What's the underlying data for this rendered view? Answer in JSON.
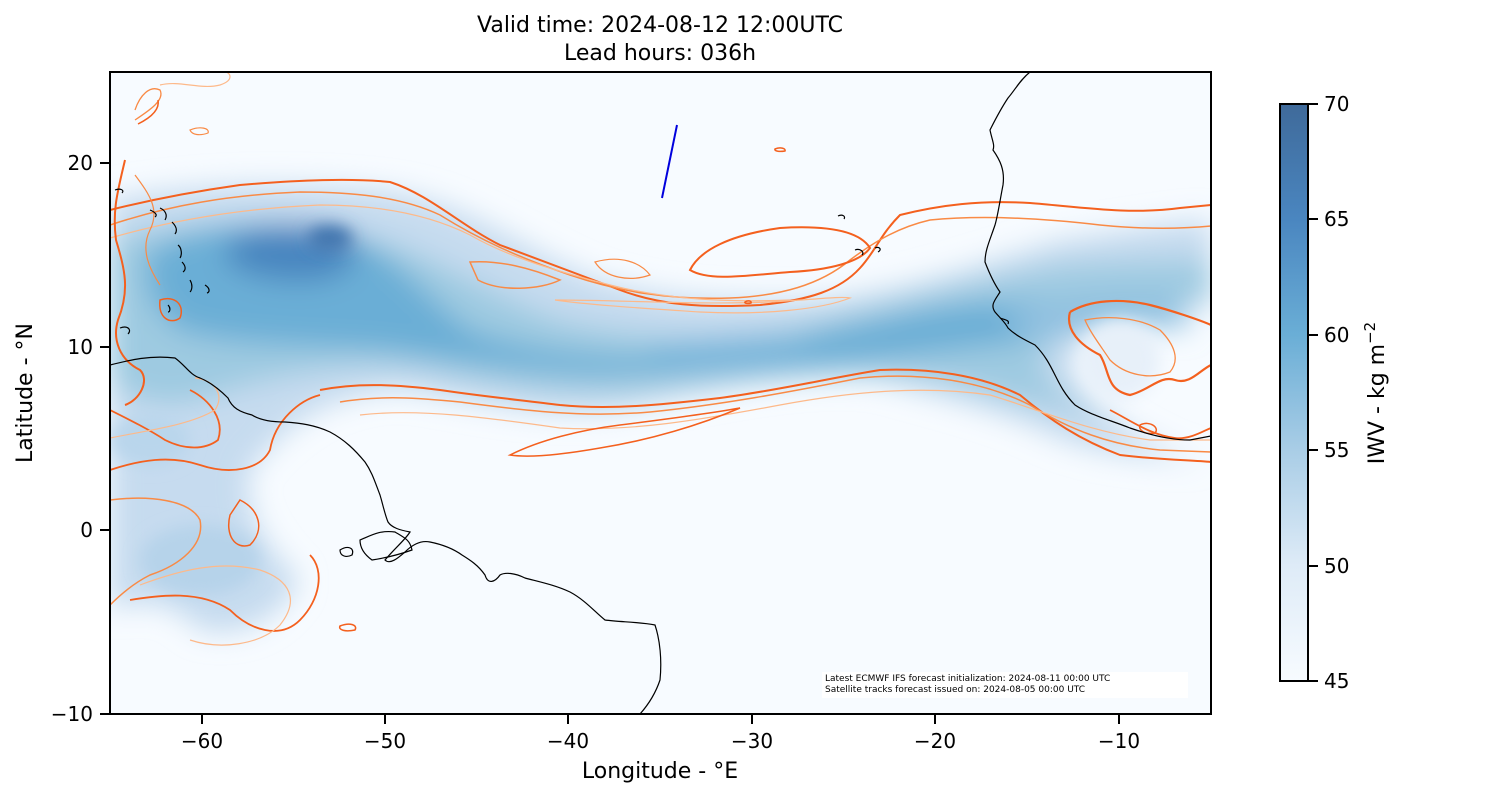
{
  "header": {
    "title_line1": "Valid time: 2024-08-12 12:00UTC",
    "title_line2": "Lead hours: 036h"
  },
  "map": {
    "x_label": "Longitude - °E",
    "y_label": "Latitude - °N",
    "lon_range": [
      -65,
      -5
    ],
    "lat_range": [
      -10,
      25
    ],
    "x_ticks": [
      -60,
      -50,
      -40,
      -30,
      -20,
      -10
    ],
    "x_tick_labels": [
      "−60",
      "−50",
      "−40",
      "−30",
      "−20",
      "−10"
    ],
    "y_ticks": [
      20,
      10,
      0,
      -10
    ],
    "y_tick_labels": [
      "20",
      "10",
      "0",
      "−10"
    ],
    "satellite_track": [
      [
        -34.9,
        18.0
      ],
      [
        -34.1,
        22.1
      ]
    ],
    "credits_line1": "Latest ECMWF IFS forecast initialization: 2024-08-11 00:00 UTC",
    "credits_line2": "Satellite tracks forecast issued on: 2024-08-05 00:00 UTC",
    "colors": {
      "low": "#f7fbff",
      "mid": "#c6dbef",
      "high": "#6aaed6",
      "peak": "#3a74b4",
      "contour_dark": "#f4601e",
      "contour_mid": "#f98a45",
      "contour_light": "#fdb98a",
      "coastline": "#000000",
      "track": "#0000dd"
    }
  },
  "colorbar": {
    "label": "IWV - kg m",
    "label_sup": "−2",
    "min": 45,
    "max": 70,
    "ticks": [
      70,
      65,
      60,
      55,
      50,
      45
    ],
    "tick_labels": [
      "70",
      "65",
      "60",
      "55",
      "50",
      "45"
    ]
  }
}
